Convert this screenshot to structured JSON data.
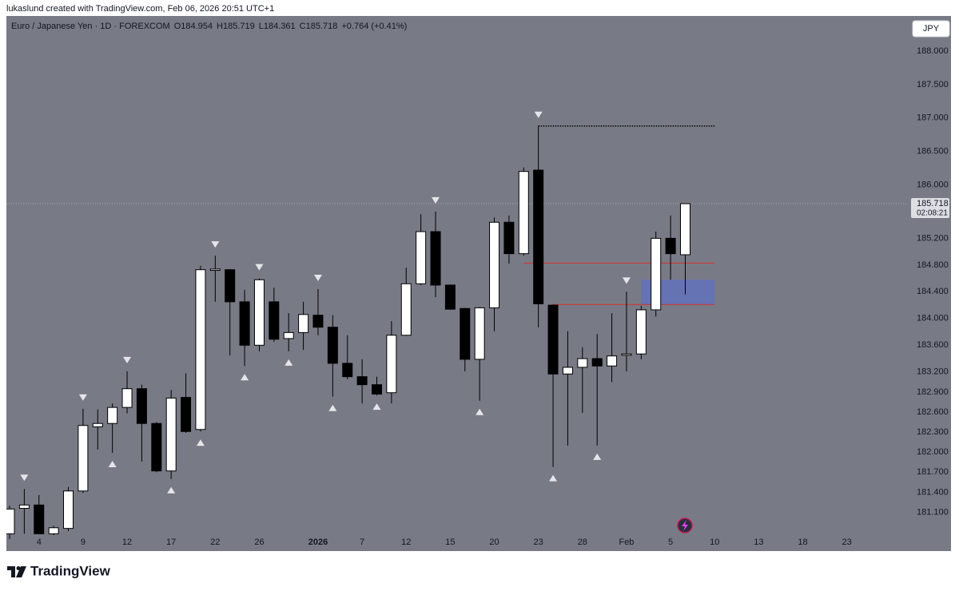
{
  "credit": "lukaslund created with TradingView.com, Feb 06, 2026 20:51 UTC+1",
  "brand": "TradingView",
  "currency_button": "JPY",
  "chart_data": {
    "type": "candlestick",
    "symbol": "Euro / Japanese Yen · 1D · FOREXCOM",
    "legend_open": "O184.954",
    "legend_high": "H185.719",
    "legend_low": "L184.361",
    "legend_close": "C185.718",
    "legend_change": "+0.764 (+0.41%)",
    "countdown": "02:08:21",
    "categories": [
      null,
      null,
      "4",
      null,
      null,
      "9",
      null,
      null,
      "12",
      null,
      null,
      "17",
      null,
      null,
      "22",
      null,
      null,
      "26",
      null,
      null,
      null,
      "2026",
      null,
      null,
      "7",
      null,
      null,
      "12",
      null,
      null,
      "15",
      null,
      null,
      "20",
      null,
      null,
      "23",
      null,
      null,
      "28",
      null,
      null,
      "Feb",
      null,
      null,
      "5",
      null,
      null,
      "10",
      null,
      null,
      "13",
      null,
      null,
      "18",
      null,
      null,
      "23"
    ],
    "bold_categories": [
      "2026"
    ],
    "open": [
      180.78,
      181.16,
      181.21,
      180.78,
      180.86,
      181.42,
      182.38,
      182.43,
      182.67,
      182.95,
      182.43,
      181.72,
      182.82,
      182.34,
      184.72,
      184.73,
      184.25,
      183.6,
      184.25,
      183.7,
      183.79,
      184.05,
      183.87,
      183.33,
      183.13,
      183.01,
      182.89,
      183.75,
      184.52,
      185.3,
      184.5,
      184.15,
      183.39,
      184.16,
      185.44,
      184.97,
      186.22,
      184.2,
      183.17,
      183.27,
      183.4,
      183.29,
      183.45,
      183.47,
      184.13,
      185.2,
      184.954,
      null,
      null,
      null,
      null,
      null,
      null,
      null,
      null,
      null,
      null,
      null
    ],
    "high": [
      181.2,
      181.45,
      181.36,
      180.9,
      181.48,
      182.65,
      182.64,
      182.73,
      183.21,
      183.01,
      182.45,
      182.93,
      183.18,
      184.79,
      184.94,
      184.74,
      184.43,
      184.6,
      184.46,
      184.08,
      184.25,
      184.44,
      184.05,
      183.75,
      183.39,
      183.13,
      183.96,
      184.76,
      185.56,
      185.6,
      184.51,
      184.16,
      184.17,
      185.51,
      185.54,
      186.26,
      186.88,
      184.21,
      183.81,
      183.57,
      183.77,
      184.08,
      184.4,
      184.19,
      185.3,
      185.54,
      185.719,
      null,
      null,
      null,
      null,
      null,
      null,
      null,
      null,
      null,
      null,
      null
    ],
    "low": [
      180.7,
      180.78,
      180.78,
      180.76,
      180.82,
      181.39,
      182.04,
      181.99,
      182.58,
      181.86,
      181.7,
      181.6,
      182.29,
      182.31,
      184.25,
      183.45,
      183.29,
      183.51,
      183.65,
      183.51,
      183.53,
      183.75,
      182.83,
      183.09,
      182.73,
      182.85,
      182.73,
      183.74,
      184.5,
      184.32,
      184.13,
      183.21,
      182.77,
      183.81,
      184.82,
      184.94,
      183.87,
      181.78,
      182.1,
      182.59,
      182.1,
      183.05,
      183.21,
      183.39,
      184.03,
      184.58,
      184.361,
      null,
      null,
      null,
      null,
      null,
      null,
      null,
      null,
      null,
      null,
      null
    ],
    "close": [
      181.15,
      181.21,
      180.78,
      180.87,
      181.42,
      182.4,
      182.43,
      182.67,
      182.95,
      182.43,
      181.72,
      182.81,
      182.31,
      184.73,
      184.74,
      184.25,
      183.6,
      184.58,
      183.69,
      183.79,
      184.06,
      183.87,
      183.33,
      183.13,
      183.01,
      182.87,
      183.75,
      184.52,
      185.3,
      184.5,
      184.14,
      183.39,
      184.16,
      185.44,
      184.97,
      186.2,
      184.22,
      183.17,
      183.27,
      183.4,
      183.29,
      183.44,
      183.47,
      184.13,
      185.2,
      184.97,
      185.718,
      null,
      null,
      null,
      null,
      null,
      null,
      null,
      null,
      null,
      null,
      null
    ],
    "markers_above": [
      false,
      true,
      false,
      false,
      false,
      true,
      false,
      false,
      true,
      false,
      false,
      false,
      false,
      false,
      true,
      false,
      false,
      true,
      false,
      false,
      false,
      true,
      false,
      false,
      false,
      false,
      false,
      false,
      false,
      true,
      false,
      false,
      false,
      false,
      false,
      false,
      true,
      false,
      false,
      false,
      false,
      false,
      true,
      false,
      false,
      false,
      false,
      false,
      false,
      false,
      false,
      false,
      false,
      false,
      false,
      false,
      false,
      false
    ],
    "markers_below": [
      false,
      false,
      false,
      false,
      false,
      false,
      false,
      true,
      false,
      false,
      false,
      true,
      false,
      true,
      false,
      false,
      true,
      false,
      false,
      true,
      false,
      false,
      true,
      false,
      false,
      true,
      false,
      false,
      false,
      false,
      false,
      false,
      true,
      false,
      false,
      false,
      false,
      true,
      false,
      false,
      true,
      false,
      false,
      false,
      false,
      false,
      false,
      false,
      false,
      false,
      false,
      false,
      false,
      false,
      false,
      false,
      false,
      false
    ],
    "levels": [
      {
        "value": 186.88,
        "from": 36,
        "to": 48,
        "color": "#000000",
        "style": "dotted"
      },
      {
        "value": 184.83,
        "from": 35,
        "to": 48,
        "color": "#d32f2f",
        "style": "solid"
      },
      {
        "value": 184.21,
        "from": 37,
        "to": 48,
        "color": "#d32f2f",
        "style": "solid"
      }
    ],
    "zone": {
      "top": 184.58,
      "bottom": 184.21,
      "from": 43,
      "to": 48,
      "color": "#5d70c8"
    },
    "ylim": [
      180.521,
      188.526
    ],
    "yticks": [
      {
        "value": 188,
        "label": "188.000"
      },
      {
        "value": 187.5,
        "label": "187.500"
      },
      {
        "value": 187,
        "label": "187.000"
      },
      {
        "value": 186.5,
        "label": "186.500"
      },
      {
        "value": 186,
        "label": "186.000"
      },
      {
        "value": 185.2,
        "label": "185.200"
      },
      {
        "value": 184.8,
        "label": "184.800"
      },
      {
        "value": 184.4,
        "label": "184.400"
      },
      {
        "value": 184,
        "label": "184.000"
      },
      {
        "value": 183.6,
        "label": "183.600"
      },
      {
        "value": 183.2,
        "label": "183.200"
      },
      {
        "value": 182.9,
        "label": "182.900"
      },
      {
        "value": 182.6,
        "label": "182.600"
      },
      {
        "value": 182.3,
        "label": "182.300"
      },
      {
        "value": 182,
        "label": "182.000"
      },
      {
        "value": 181.7,
        "label": "181.700"
      },
      {
        "value": 181.4,
        "label": "181.400"
      },
      {
        "value": 181.1,
        "label": "181.100"
      }
    ],
    "grid": false,
    "background": "#787b86",
    "up_color": "#ffffff",
    "down_color": "#000000",
    "wick_color": "#000000",
    "marker_color": "#e6e6ea",
    "price_line_color": "#a9acb5"
  }
}
